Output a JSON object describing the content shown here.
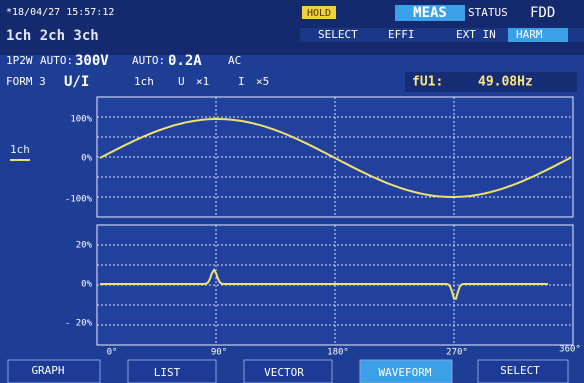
{
  "header": {
    "timestamp": "*18/04/27 15:57:12",
    "hold": "HOLD",
    "meas": "MEAS",
    "status": "STATUS",
    "fdd": "FDD",
    "channels": "1ch 2ch 3ch",
    "menu": [
      "SELECT",
      "EFFI",
      "EXT IN",
      "HARM"
    ]
  },
  "settings": {
    "wiring": "1P2W",
    "voltage_auto": "AUTO:",
    "voltage_range": "300V",
    "current_auto": "AUTO:",
    "current_range": "0.2A",
    "coupling": "AC",
    "form": "FORM 3",
    "mode": "U/I",
    "channel": "1ch",
    "u_label": "U",
    "u_scale": "×1",
    "i_label": "I",
    "i_scale": "×5",
    "freq_label": "fU1:",
    "freq_value": "49.08Hz"
  },
  "upper_panel": {
    "legend": "1ch",
    "y_labels": [
      "100%",
      "0%",
      "-100%"
    ]
  },
  "lower_panel": {
    "y_labels": [
      "20%",
      "0%",
      "- 20%"
    ]
  },
  "x_labels": [
    "0°",
    "90°",
    "180°",
    "270°",
    "360°"
  ],
  "buttons": [
    "GRAPH",
    "LIST",
    "VECTOR",
    "WAVEFORM",
    "SELECT"
  ]
}
